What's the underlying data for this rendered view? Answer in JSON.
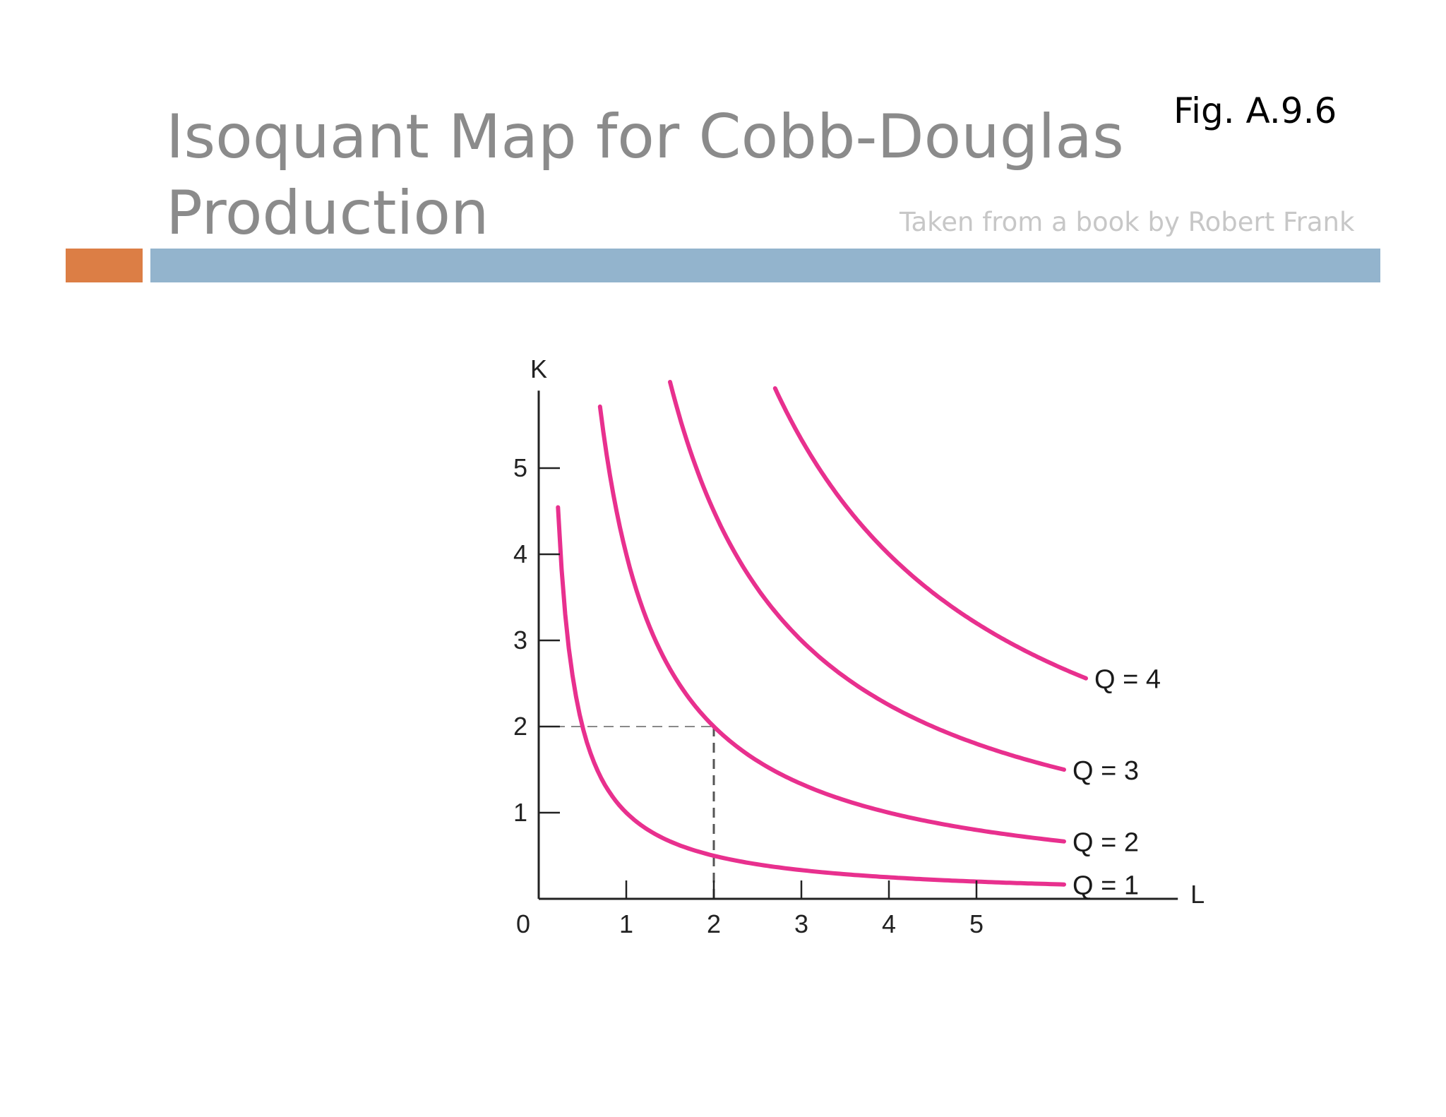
{
  "slide": {
    "title_line1": "Isoquant Map for Cobb-Douglas",
    "title_line2": "Production",
    "figure_label": "Fig. A.9.6",
    "credit": "Taken from a book by Robert Frank"
  },
  "colors": {
    "title": "#8b8b8b",
    "accent_bar": "#dc7e45",
    "main_bar": "#93b4cd",
    "curve": "#e8308e",
    "axis": "#222222",
    "guide": "#555555"
  },
  "chart_data": {
    "type": "line",
    "title": "",
    "xlabel": "L",
    "ylabel": "K",
    "origin_label": "0",
    "xlim": [
      0,
      7.3
    ],
    "ylim": [
      0,
      5.9
    ],
    "x_ticks": [
      1,
      2,
      3,
      4,
      5
    ],
    "y_ticks": [
      1,
      2,
      3,
      4,
      5
    ],
    "grid": false,
    "series": [
      {
        "name": "Q = 1",
        "k_times_l": 1,
        "x_range": [
          0.22,
          6.0
        ]
      },
      {
        "name": "Q = 2",
        "k_times_l": 4,
        "x_range": [
          0.7,
          6.0
        ]
      },
      {
        "name": "Q = 3",
        "k_times_l": 9,
        "x_range": [
          1.5,
          6.0
        ]
      },
      {
        "name": "Q = 4",
        "k_times_l": 16,
        "x_range": [
          2.7,
          6.25
        ]
      }
    ],
    "guide_point": {
      "x": 2,
      "y": 2
    }
  }
}
